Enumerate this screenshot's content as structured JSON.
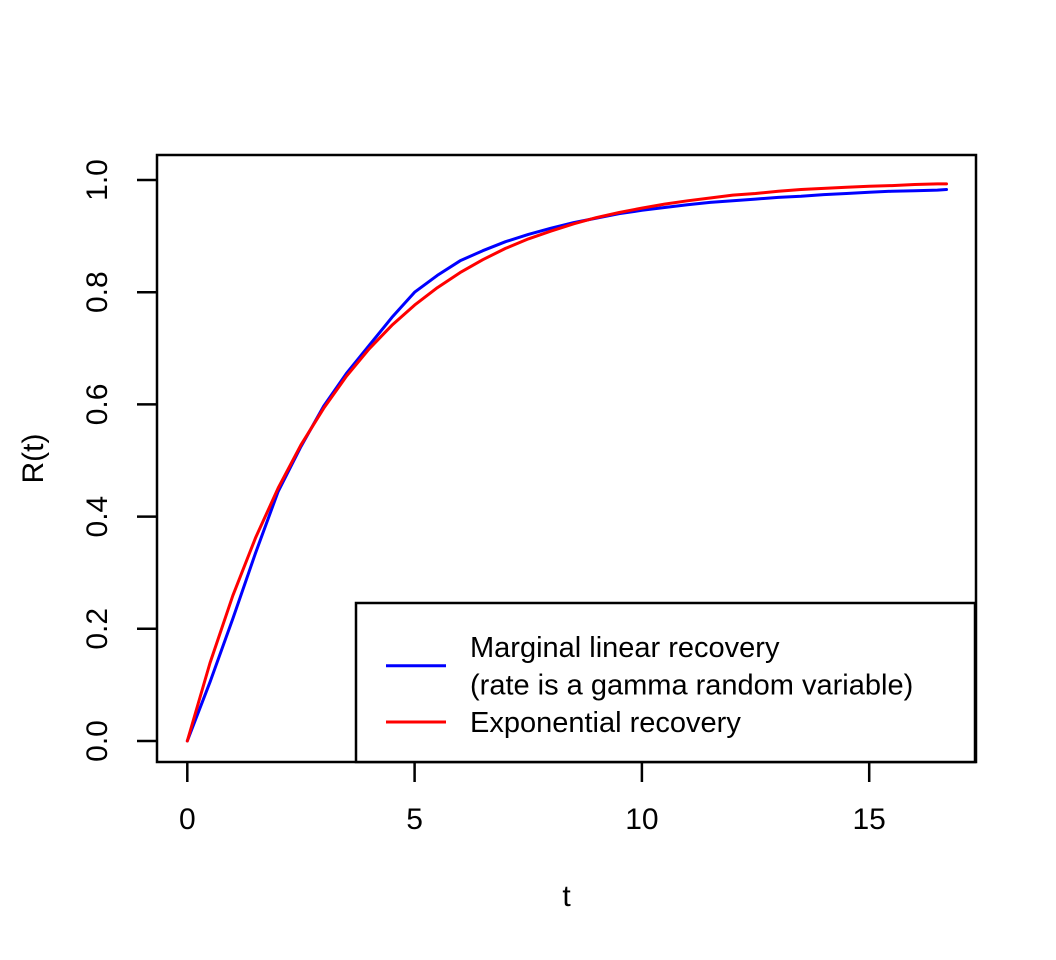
{
  "chart_data": {
    "type": "line",
    "title": "",
    "xlabel": "t",
    "ylabel": "R(t)",
    "xlim": [
      0,
      16.7
    ],
    "ylim": [
      0,
      1.0
    ],
    "grid": false,
    "background": "#ffffff",
    "axis_color": "#000000",
    "x_ticks": [
      0,
      5,
      10,
      15
    ],
    "x_tick_labels": [
      "0",
      "5",
      "10",
      "15"
    ],
    "y_ticks": [
      0.0,
      0.2,
      0.4,
      0.6,
      0.8,
      1.0
    ],
    "y_tick_labels": [
      "0.0",
      "0.2",
      "0.4",
      "0.6",
      "0.8",
      "1.0"
    ],
    "legend_position": "bottom-right-inside",
    "x": [
      0,
      0.5,
      1,
      1.5,
      2,
      2.5,
      3,
      3.5,
      4,
      4.5,
      5,
      5.5,
      6,
      6.5,
      7,
      7.5,
      8,
      8.5,
      9,
      9.5,
      10,
      10.5,
      11,
      11.5,
      12,
      12.5,
      13,
      13.5,
      14,
      14.5,
      15,
      15.5,
      16,
      16.5,
      16.7
    ],
    "series": [
      {
        "name": "Marginal linear recovery (rate is a gamma random variable)",
        "color": "#0000ff",
        "y": [
          0,
          0.105,
          0.218,
          0.335,
          0.445,
          0.525,
          0.597,
          0.655,
          0.705,
          0.755,
          0.8,
          0.83,
          0.856,
          0.874,
          0.89,
          0.903,
          0.914,
          0.924,
          0.932,
          0.94,
          0.946,
          0.951,
          0.956,
          0.96,
          0.963,
          0.966,
          0.969,
          0.971,
          0.974,
          0.976,
          0.978,
          0.98,
          0.981,
          0.982,
          0.983
        ]
      },
      {
        "name": "Exponential recovery",
        "color": "#ff0000",
        "y": [
          0,
          0.139,
          0.259,
          0.362,
          0.451,
          0.528,
          0.593,
          0.65,
          0.699,
          0.741,
          0.777,
          0.808,
          0.835,
          0.858,
          0.878,
          0.895,
          0.909,
          0.922,
          0.933,
          0.942,
          0.95,
          0.957,
          0.963,
          0.968,
          0.973,
          0.976,
          0.98,
          0.983,
          0.985,
          0.987,
          0.989,
          0.99,
          0.992,
          0.993,
          0.993
        ]
      }
    ],
    "legend": {
      "entries": [
        {
          "lines": [
            "Marginal linear recovery",
            "(rate is a gamma random variable)"
          ],
          "color": "#0000ff"
        },
        {
          "lines": [
            "Exponential recovery"
          ],
          "color": "#ff0000"
        }
      ]
    }
  }
}
